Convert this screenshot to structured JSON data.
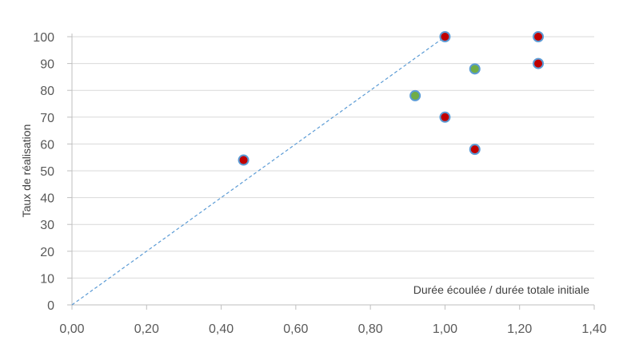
{
  "chart_data": {
    "type": "scatter",
    "title": "",
    "xlabel": "Durée écoulée / durée totale initiale",
    "ylabel": "Taux de réalisation",
    "xlim": [
      0,
      1.4
    ],
    "ylim": [
      0,
      100
    ],
    "x_ticks": [
      "0,00",
      "0,20",
      "0,40",
      "0,60",
      "0,80",
      "1,00",
      "1,20",
      "1,40"
    ],
    "y_ticks": [
      "0",
      "10",
      "20",
      "30",
      "40",
      "50",
      "60",
      "70",
      "80",
      "90",
      "100"
    ],
    "grid": "horizontal",
    "reference_line": {
      "x": [
        0,
        1.0
      ],
      "y": [
        0,
        100
      ],
      "style": "dashed",
      "color": "#5b9bd5"
    },
    "series": [
      {
        "color": "#c00000",
        "points": [
          {
            "x": 0.46,
            "y": 54
          },
          {
            "x": 1.0,
            "y": 100
          },
          {
            "x": 1.0,
            "y": 70
          },
          {
            "x": 1.08,
            "y": 58
          },
          {
            "x": 1.25,
            "y": 100
          },
          {
            "x": 1.25,
            "y": 90
          }
        ]
      },
      {
        "color": "#70ad47",
        "points": [
          {
            "x": 0.92,
            "y": 78
          },
          {
            "x": 1.08,
            "y": 88
          }
        ]
      }
    ],
    "marker_outline": "#5b9bd5"
  }
}
